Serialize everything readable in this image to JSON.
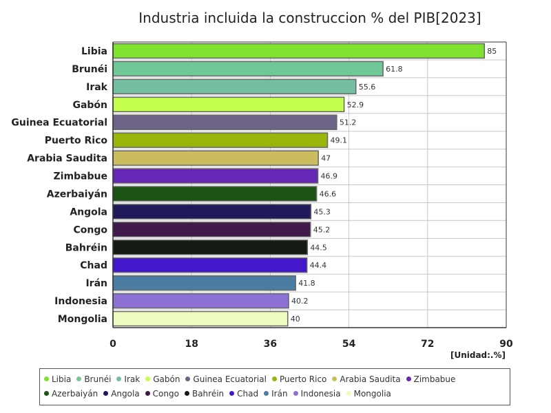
{
  "chart_data": {
    "type": "bar",
    "orientation": "horizontal",
    "title": "Industria incluida la construccion % del PIB[2023]",
    "unit_label": "[Unidad:.%]",
    "xlim": [
      0,
      90
    ],
    "xticks": [
      "0",
      "18",
      "36",
      "54",
      "72",
      "90"
    ],
    "grid": true,
    "legend_position": "bottom",
    "categories": [
      "Libia",
      "Brunéi",
      "Irak",
      "Gabón",
      "Guinea Ecuatorial",
      "Puerto Rico",
      "Arabia Saudita",
      "Zimbabue",
      "Azerbaiyán",
      "Angola",
      "Congo",
      "Bahréin",
      "Chad",
      "Irán",
      "Indonesia",
      "Mongolia"
    ],
    "values": [
      85,
      61.8,
      55.6,
      52.9,
      51.2,
      49.1,
      47,
      46.9,
      46.6,
      45.3,
      45.2,
      44.5,
      44.4,
      41.8,
      40.2,
      40
    ],
    "value_labels": [
      "85",
      "61.8",
      "55.6",
      "52.9",
      "51.2",
      "49.1",
      "47",
      "46.9",
      "46.6",
      "45.3",
      "45.2",
      "44.5",
      "44.4",
      "41.8",
      "40.2",
      "40"
    ],
    "colors": [
      "#7fe22e",
      "#6fc895",
      "#73bfa0",
      "#c4ff4d",
      "#6c6386",
      "#9ab40a",
      "#cbbc5e",
      "#6528b4",
      "#1b5314",
      "#20195a",
      "#3f1a4a",
      "#121a12",
      "#4318cc",
      "#4b7ca2",
      "#8d70d4",
      "#eefbbf"
    ]
  }
}
